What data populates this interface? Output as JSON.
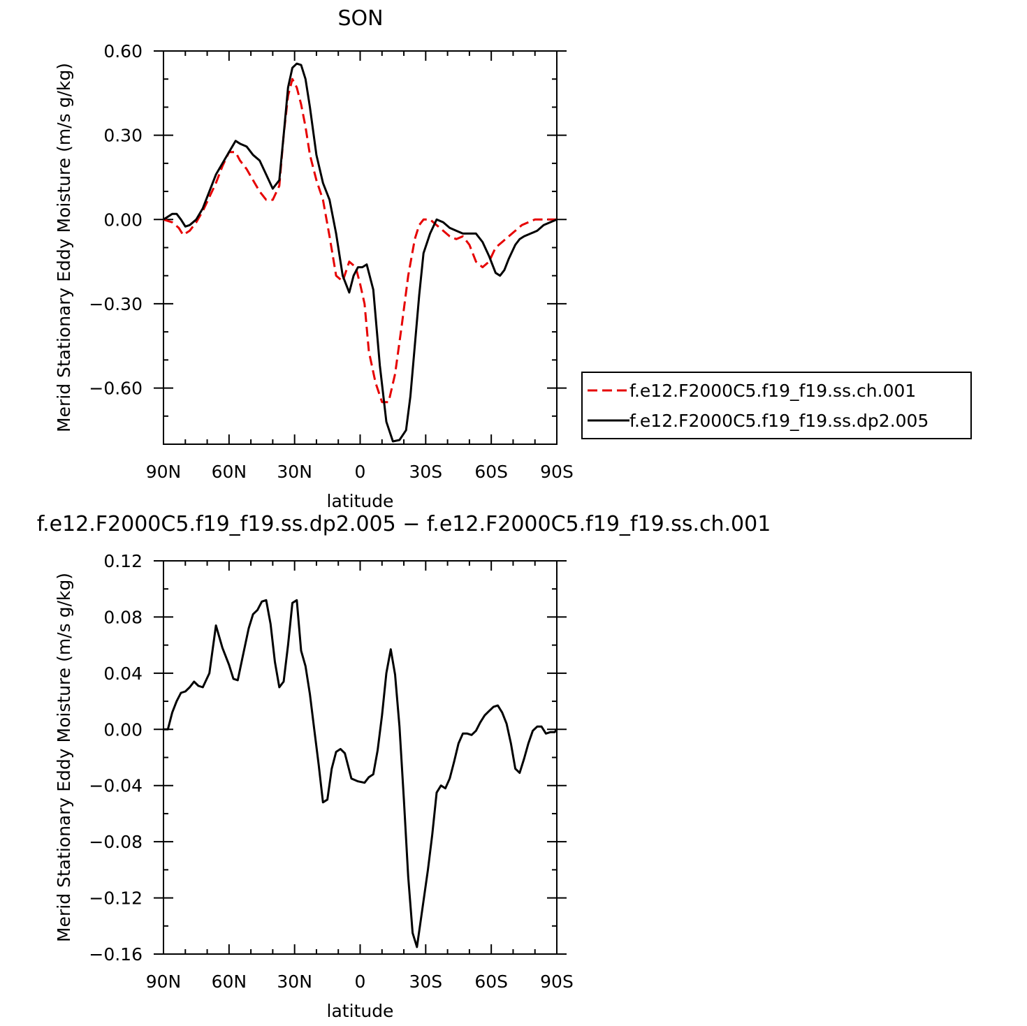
{
  "chart_data": [
    {
      "type": "line",
      "title": "SON",
      "xlabel": "latitude",
      "ylabel": "Merid Stationary Eddy Moisture (m/s g/kg)",
      "xlim": [
        90,
        -90
      ],
      "ylim": [
        -0.8,
        0.6
      ],
      "xticks": [
        90,
        60,
        30,
        0,
        -30,
        -60,
        -90
      ],
      "xtick_labels": [
        "90N",
        "60N",
        "30N",
        "0",
        "30S",
        "60S",
        "90S"
      ],
      "yticks": [
        0.6,
        0.3,
        0.0,
        -0.3,
        -0.6
      ],
      "ytick_labels": [
        "0.60",
        "0.30",
        "0.00",
        "−0.30",
        "−0.60"
      ],
      "legend_position": "right",
      "series": [
        {
          "name": "f.e12.F2000C5.f19_f19.ss.ch.001",
          "color": "#e60000",
          "dash": "dashed",
          "x": [
            90,
            86,
            83,
            81,
            78,
            75,
            72,
            69,
            66,
            63,
            60,
            57,
            55,
            52,
            49,
            46,
            43,
            40,
            37,
            35,
            33,
            31,
            29,
            27,
            25,
            23,
            20,
            17,
            14,
            11,
            8,
            5,
            2,
            0,
            -2,
            -4,
            -7,
            -10,
            -13,
            -16,
            -19,
            -22,
            -25,
            -27,
            -29,
            -32,
            -35,
            -38,
            -41,
            -44,
            -47,
            -50,
            -53,
            -56,
            -59,
            -62,
            -65,
            -68,
            -71,
            -74,
            -77,
            -80,
            -83,
            -86,
            -88,
            -90
          ],
          "y": [
            0.0,
            -0.01,
            -0.03,
            -0.055,
            -0.04,
            -0.01,
            0.03,
            0.08,
            0.13,
            0.19,
            0.24,
            0.24,
            0.21,
            0.18,
            0.14,
            0.1,
            0.07,
            0.07,
            0.12,
            0.3,
            0.44,
            0.5,
            0.47,
            0.41,
            0.33,
            0.23,
            0.14,
            0.07,
            -0.06,
            -0.2,
            -0.22,
            -0.15,
            -0.17,
            -0.23,
            -0.3,
            -0.47,
            -0.58,
            -0.65,
            -0.65,
            -0.55,
            -0.38,
            -0.2,
            -0.07,
            -0.02,
            0.0,
            0.0,
            -0.02,
            -0.04,
            -0.06,
            -0.07,
            -0.06,
            -0.09,
            -0.15,
            -0.17,
            -0.15,
            -0.1,
            -0.08,
            -0.06,
            -0.04,
            -0.02,
            -0.01,
            0.0,
            0.0,
            0.0,
            0.0,
            0.0
          ]
        },
        {
          "name": "f.e12.F2000C5.f19_f19.ss.dp2.005",
          "color": "#000000",
          "dash": "solid",
          "x": [
            90,
            88,
            86,
            84,
            82,
            80,
            78,
            75,
            72,
            69,
            66,
            63,
            60,
            57,
            55,
            52,
            49,
            46,
            43,
            40,
            37,
            35,
            33,
            31,
            29,
            27,
            25,
            23,
            20,
            17,
            14,
            11,
            8,
            5,
            3,
            1,
            -1,
            -3,
            -6,
            -9,
            -12,
            -15,
            -18,
            -21,
            -23,
            -25,
            -27,
            -29,
            -32,
            -35,
            -38,
            -41,
            -44,
            -47,
            -50,
            -53,
            -56,
            -59,
            -62,
            -64,
            -66,
            -68,
            -71,
            -73,
            -75,
            -78,
            -81,
            -84,
            -87,
            -90
          ],
          "y": [
            0.0,
            0.01,
            0.02,
            0.02,
            0.0,
            -0.025,
            -0.02,
            0.0,
            0.04,
            0.1,
            0.16,
            0.2,
            0.24,
            0.28,
            0.27,
            0.26,
            0.23,
            0.21,
            0.16,
            0.11,
            0.14,
            0.3,
            0.47,
            0.54,
            0.555,
            0.55,
            0.5,
            0.4,
            0.23,
            0.13,
            0.07,
            -0.05,
            -0.2,
            -0.26,
            -0.2,
            -0.17,
            -0.17,
            -0.16,
            -0.25,
            -0.52,
            -0.72,
            -0.79,
            -0.785,
            -0.75,
            -0.63,
            -0.45,
            -0.27,
            -0.12,
            -0.05,
            0.0,
            -0.01,
            -0.03,
            -0.04,
            -0.05,
            -0.05,
            -0.05,
            -0.08,
            -0.13,
            -0.19,
            -0.2,
            -0.18,
            -0.14,
            -0.09,
            -0.07,
            -0.06,
            -0.05,
            -0.04,
            -0.02,
            -0.01,
            0.0
          ]
        }
      ]
    },
    {
      "type": "line",
      "title": "f.e12.F2000C5.f19_f19.ss.dp2.005 − f.e12.F2000C5.f19_f19.ss.ch.001",
      "xlabel": "latitude",
      "ylabel": "Merid Stationary Eddy Moisture (m/s g/kg)",
      "xlim": [
        90,
        -90
      ],
      "ylim": [
        -0.16,
        0.12
      ],
      "xticks": [
        90,
        60,
        30,
        0,
        -30,
        -60,
        -90
      ],
      "xtick_labels": [
        "90N",
        "60N",
        "30N",
        "0",
        "30S",
        "60S",
        "90S"
      ],
      "yticks": [
        0.12,
        0.08,
        0.04,
        0.0,
        -0.04,
        -0.08,
        -0.12,
        -0.16
      ],
      "ytick_labels": [
        "0.12",
        "0.08",
        "0.04",
        "0.00",
        "−0.04",
        "−0.08",
        "−0.12",
        "−0.16"
      ],
      "series": [
        {
          "color": "#000000",
          "dash": "solid",
          "x": [
            90,
            88,
            86,
            84,
            82,
            80,
            78,
            76,
            74,
            72,
            69,
            66,
            63,
            60,
            58,
            56,
            54,
            51,
            49,
            47,
            45,
            43,
            41,
            39,
            37,
            35,
            33,
            31,
            29,
            27,
            25,
            23,
            21,
            19,
            17,
            15,
            13,
            11,
            9,
            7,
            4,
            1,
            -2,
            -4,
            -6,
            -8,
            -10,
            -12,
            -14,
            -16,
            -18,
            -20,
            -22,
            -24,
            -26,
            -28,
            -31,
            -33,
            -35,
            -37,
            -39,
            -41,
            -43,
            -45,
            -47,
            -49,
            -51,
            -53,
            -55,
            -57,
            -59,
            -61,
            -63,
            -65,
            -67,
            -69,
            -71,
            -73,
            -75,
            -77,
            -79,
            -81,
            -83,
            -85,
            -87,
            -89,
            -90
          ],
          "y": [
            0.0,
            0.0,
            0.012,
            0.02,
            0.026,
            0.027,
            0.03,
            0.034,
            0.031,
            0.03,
            0.04,
            0.074,
            0.058,
            0.046,
            0.036,
            0.035,
            0.05,
            0.072,
            0.082,
            0.085,
            0.091,
            0.092,
            0.075,
            0.048,
            0.03,
            0.034,
            0.06,
            0.09,
            0.092,
            0.056,
            0.045,
            0.025,
            0.0,
            -0.025,
            -0.052,
            -0.05,
            -0.028,
            -0.016,
            -0.014,
            -0.017,
            -0.035,
            -0.037,
            -0.038,
            -0.034,
            -0.032,
            -0.015,
            0.01,
            0.04,
            0.057,
            0.039,
            0.002,
            -0.05,
            -0.105,
            -0.145,
            -0.155,
            -0.133,
            -0.1,
            -0.075,
            -0.045,
            -0.04,
            -0.042,
            -0.035,
            -0.023,
            -0.01,
            -0.003,
            -0.003,
            -0.004,
            -0.001,
            0.005,
            0.01,
            0.013,
            0.016,
            0.017,
            0.012,
            0.004,
            -0.01,
            -0.028,
            -0.031,
            -0.021,
            -0.01,
            -0.001,
            0.002,
            0.002,
            -0.003,
            -0.002,
            -0.002,
            0.0
          ]
        }
      ]
    }
  ]
}
